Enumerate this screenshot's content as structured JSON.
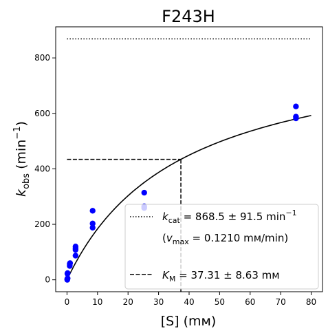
{
  "chart_data": {
    "type": "scatter",
    "title": "F243H",
    "xlabel": {
      "main": "[S] (mм)"
    },
    "ylabel": {
      "base": "k",
      "sub": "obs",
      "unit": " (min",
      "sup": "−1",
      "close": ")"
    },
    "xlim": [
      -3.7,
      83.7
    ],
    "ylim": [
      -43,
      912
    ],
    "xticks": [
      0,
      10,
      20,
      30,
      40,
      50,
      60,
      70,
      80
    ],
    "yticks": [
      0,
      200,
      400,
      600,
      800
    ],
    "grid": false,
    "legend_position": "lower-right",
    "colors": {
      "points": "#0000ff",
      "fit": "#000000",
      "reference": "#000000"
    },
    "points": [
      {
        "x": 0.09,
        "y": 0
      },
      {
        "x": 0.1,
        "y": 3
      },
      {
        "x": 0.2,
        "y": 5
      },
      {
        "x": 0.15,
        "y": 22
      },
      {
        "x": 0.2,
        "y": 24
      },
      {
        "x": 0.9,
        "y": 50
      },
      {
        "x": 0.9,
        "y": 57
      },
      {
        "x": 1.0,
        "y": 60
      },
      {
        "x": 2.8,
        "y": 87
      },
      {
        "x": 2.8,
        "y": 108
      },
      {
        "x": 2.8,
        "y": 114
      },
      {
        "x": 2.8,
        "y": 120
      },
      {
        "x": 8.4,
        "y": 188
      },
      {
        "x": 8.4,
        "y": 203
      },
      {
        "x": 8.4,
        "y": 249
      },
      {
        "x": 25.3,
        "y": 259
      },
      {
        "x": 25.3,
        "y": 265
      },
      {
        "x": 25.3,
        "y": 314
      },
      {
        "x": 75.0,
        "y": 582
      },
      {
        "x": 75.0,
        "y": 588
      },
      {
        "x": 75.0,
        "y": 625
      }
    ],
    "fit": {
      "model": "michaelis-menten",
      "kcat": 868.5,
      "km": 37.31,
      "x_range": [
        0,
        80
      ]
    },
    "kcat_line": {
      "y": 868.5,
      "x_range": [
        0,
        80
      ]
    },
    "km_marker": {
      "x": 37.31,
      "y": 434.25,
      "x_start": 0
    },
    "legend": [
      {
        "style": "dotted",
        "base": "k",
        "sub": "cat",
        "text": " = 868.5 ± 91.5 min",
        "sup": "−1"
      },
      {
        "style": "none",
        "pre": "(",
        "base": "v",
        "sub": "max",
        "text": " = 0.1210 mм/min)"
      },
      {
        "style": "dashed",
        "base": "K",
        "sub": "M",
        "text": " = 37.31 ± 8.63 mм"
      }
    ]
  }
}
